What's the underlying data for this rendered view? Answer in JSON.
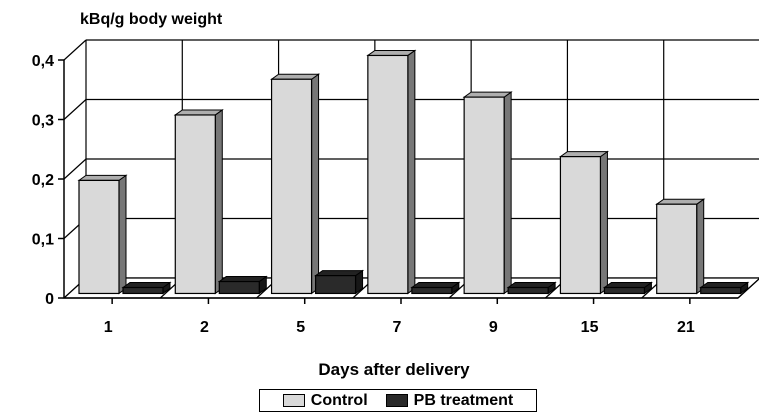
{
  "chart_data": {
    "type": "bar",
    "title": "",
    "ylabel": "kBq/g body weight",
    "xlabel": "Days after delivery",
    "categories": [
      "1",
      "2",
      "5",
      "7",
      "9",
      "15",
      "21"
    ],
    "yticks": [
      "0",
      "0,1",
      "0,2",
      "0,3",
      "0,4"
    ],
    "ylim": [
      0,
      0.4
    ],
    "grid": true,
    "legend_position": "bottom",
    "series": [
      {
        "name": "Control",
        "color": "#d9d9d9",
        "values": [
          0.19,
          0.3,
          0.36,
          0.4,
          0.33,
          0.23,
          0.15
        ]
      },
      {
        "name": "PB treatment",
        "color": "#2a2a2a",
        "values": [
          0.01,
          0.02,
          0.03,
          0.01,
          0.01,
          0.01,
          0.01
        ]
      }
    ]
  }
}
